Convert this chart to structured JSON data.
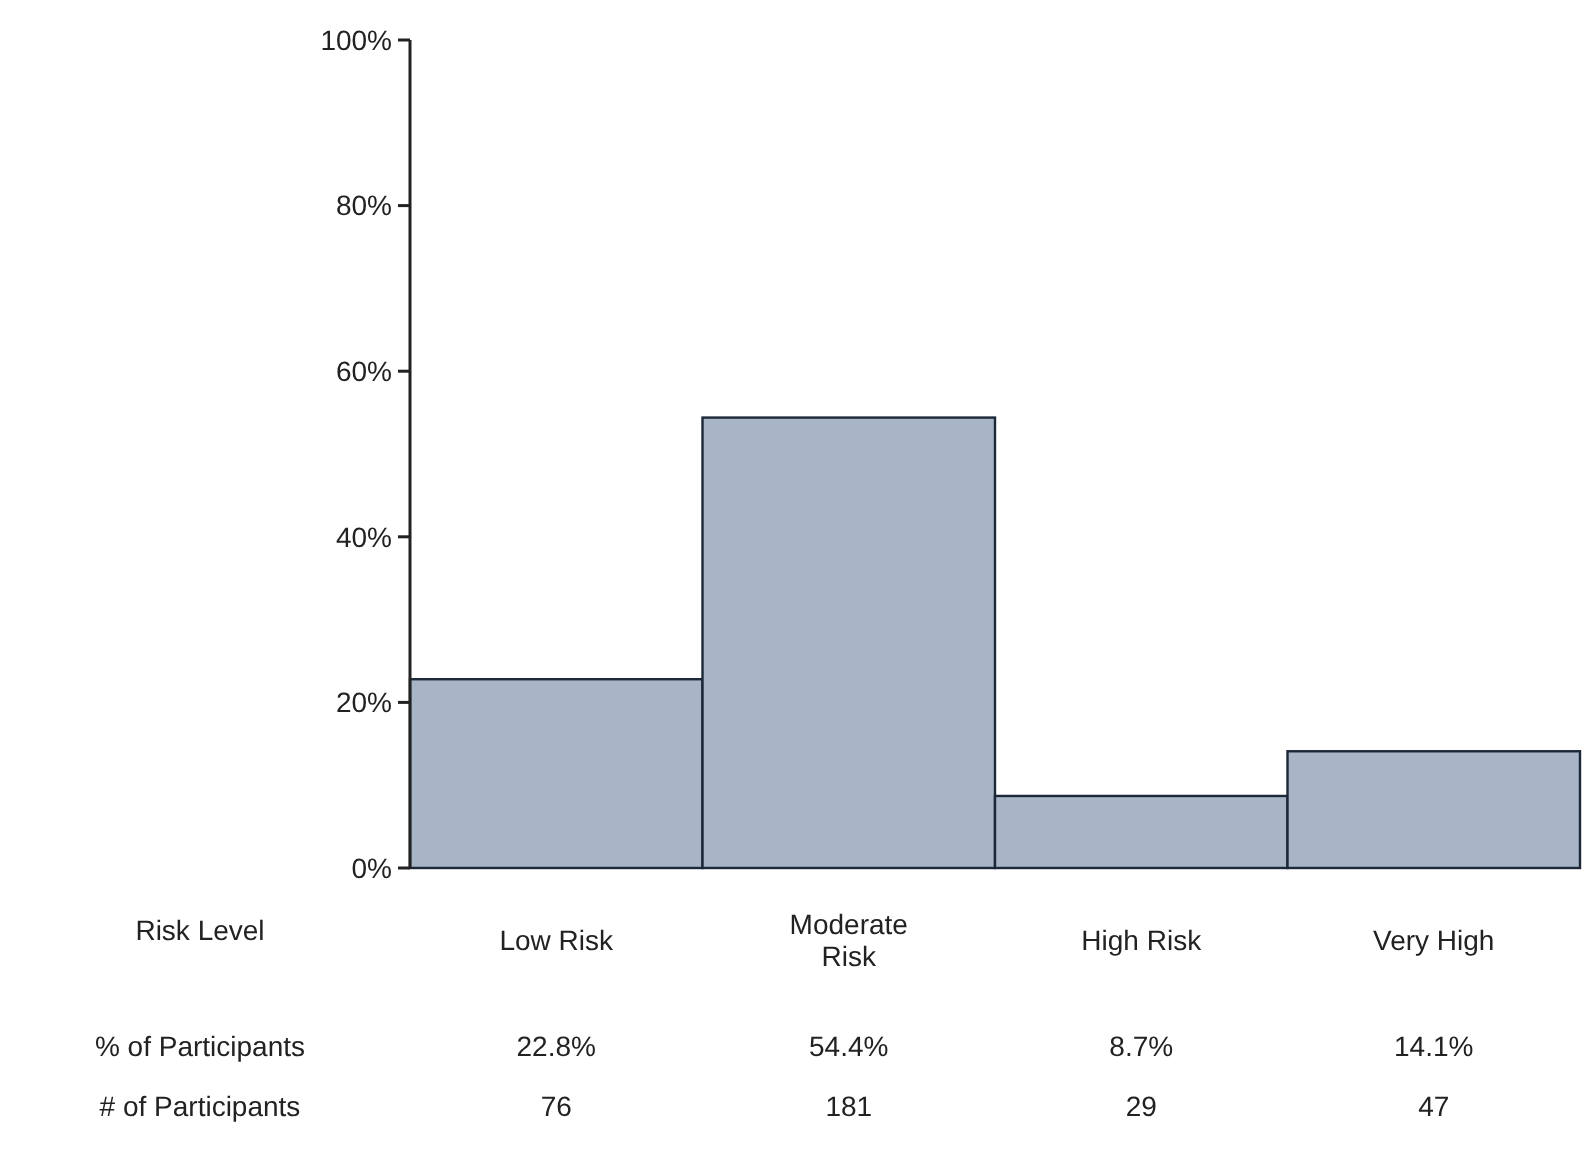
{
  "chart_data": {
    "type": "bar",
    "xlabel": "Risk Level",
    "categories": [
      "Low Risk",
      "Moderate Risk",
      "High Risk",
      "Very High"
    ],
    "values": [
      22.8,
      54.4,
      8.7,
      14.1
    ],
    "color": "#a7b5c6",
    "value_labels": [
      "22.8%",
      "54.4%",
      "8.7%",
      "14.1%"
    ],
    "ylim": [
      0,
      100
    ],
    "yticks": [
      {
        "value": 0,
        "label": "0%"
      },
      {
        "value": 20,
        "label": "20%"
      },
      {
        "value": 40,
        "label": "40%"
      },
      {
        "value": 60,
        "label": "60%"
      },
      {
        "value": 80,
        "label": "80%"
      },
      {
        "value": 100,
        "label": "100%"
      }
    ],
    "grid": false,
    "annotations": [
      "% of Participants",
      "# of Participants",
      "76",
      "181",
      "29",
      "47"
    ]
  }
}
